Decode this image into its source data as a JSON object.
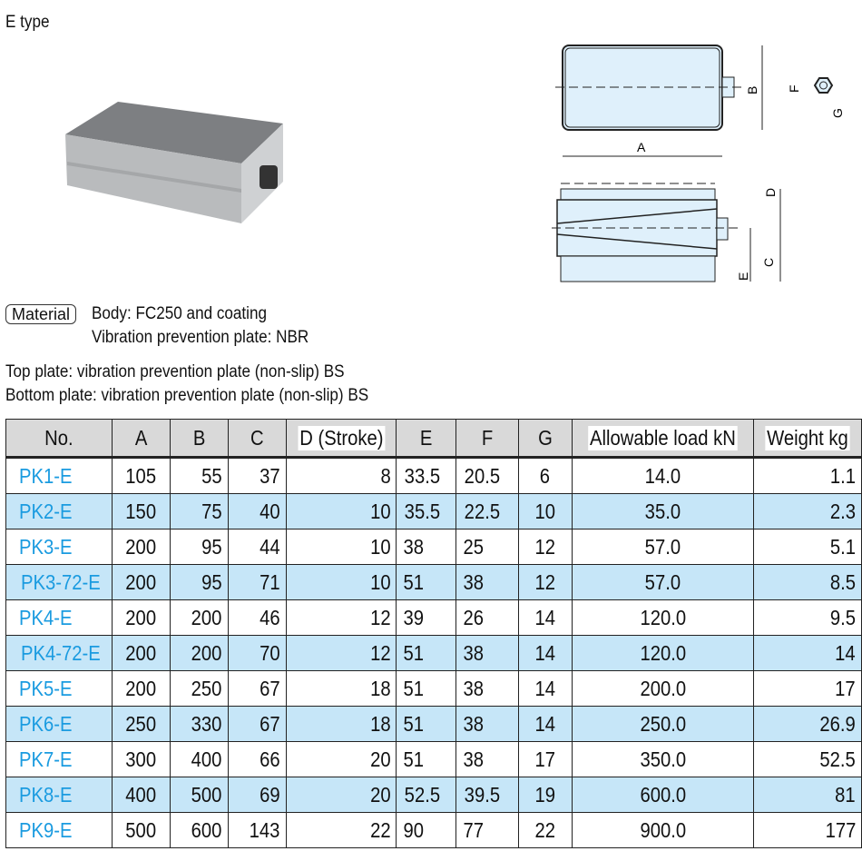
{
  "title": "E type",
  "material": {
    "badge": "Material",
    "body": "Body: FC250 and coating",
    "plate": "Vibration prevention plate: NBR"
  },
  "notes": [
    "Top plate: vibration prevention plate (non-slip) BS",
    "Bottom plate: vibration prevention plate (non-slip) BS"
  ],
  "drawing_labels": {
    "A": "A",
    "B": "B",
    "C": "C",
    "D": "D",
    "E": "E",
    "F": "F",
    "G": "G"
  },
  "colors": {
    "link": "#1a9be0",
    "row_alt": "#c6e6f8",
    "drawing_fill": "#dff0fb"
  },
  "table": {
    "headers": [
      "No.",
      "A",
      "B",
      "C",
      "D (Stroke)",
      "E",
      "F",
      "G",
      "Allowable load kN",
      "Weight kg"
    ],
    "rows": [
      [
        "PK1-E",
        "105",
        "55",
        "37",
        "8",
        "33.5",
        "20.5",
        "6",
        "14.0",
        "1.1"
      ],
      [
        "PK2-E",
        "150",
        "75",
        "40",
        "10",
        "35.5",
        "22.5",
        "10",
        "35.0",
        "2.3"
      ],
      [
        "PK3-E",
        "200",
        "95",
        "44",
        "10",
        "38",
        "25",
        "12",
        "57.0",
        "5.1"
      ],
      [
        "PK3-72-E",
        "200",
        "95",
        "71",
        "10",
        "51",
        "38",
        "12",
        "57.0",
        "8.5"
      ],
      [
        "PK4-E",
        "200",
        "200",
        "46",
        "12",
        "39",
        "26",
        "14",
        "120.0",
        "9.5"
      ],
      [
        "PK4-72-E",
        "200",
        "200",
        "70",
        "12",
        "51",
        "38",
        "14",
        "120.0",
        "14"
      ],
      [
        "PK5-E",
        "200",
        "250",
        "67",
        "18",
        "51",
        "38",
        "14",
        "200.0",
        "17"
      ],
      [
        "PK6-E",
        "250",
        "330",
        "67",
        "18",
        "51",
        "38",
        "14",
        "250.0",
        "26.9"
      ],
      [
        "PK7-E",
        "300",
        "400",
        "66",
        "20",
        "51",
        "38",
        "17",
        "350.0",
        "52.5"
      ],
      [
        "PK8-E",
        "400",
        "500",
        "69",
        "20",
        "52.5",
        "39.5",
        "19",
        "600.0",
        "81"
      ],
      [
        "PK9-E",
        "500",
        "600",
        "143",
        "22",
        "90",
        "77",
        "22",
        "900.0",
        "177"
      ]
    ]
  }
}
